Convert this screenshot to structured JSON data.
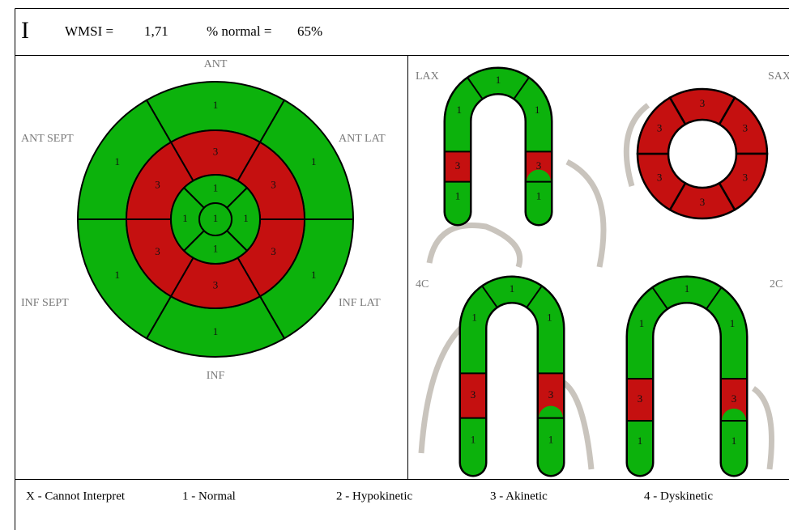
{
  "header": {
    "logo": "I",
    "wmsi_label": "WMSI =",
    "wmsi_value": "1,71",
    "normal_label": "% normal =",
    "normal_value": "65%"
  },
  "score_colors": {
    "1": "#0cb20c",
    "3": "#c51010"
  },
  "bullseye": {
    "labels": {
      "ant": "ANT",
      "ant_sept": "ANT SEPT",
      "ant_lat": "ANT LAT",
      "inf_sept": "INF SEPT",
      "inf_lat": "INF LAT",
      "inf": "INF"
    },
    "basal": [
      1,
      1,
      1,
      1,
      1,
      1
    ],
    "mid": [
      3,
      3,
      3,
      3,
      3,
      3
    ],
    "apical": [
      1,
      1,
      1,
      1
    ],
    "apex": 1
  },
  "views": [
    {
      "label": "LAX",
      "scores": [
        1,
        3,
        1,
        1,
        1,
        3,
        1
      ]
    },
    {
      "label": "4C",
      "scores": [
        1,
        3,
        1,
        1,
        1,
        3,
        1
      ]
    },
    {
      "label": "2C",
      "scores": [
        1,
        3,
        1,
        1,
        1,
        3,
        1
      ]
    }
  ],
  "sax": {
    "label": "SAX",
    "scores": [
      3,
      3,
      3,
      3,
      3,
      3
    ]
  },
  "legend": [
    "X - Cannot Interpret",
    "1 - Normal",
    "2 - Hypokinetic",
    "3 - Akinetic",
    "4 - Dyskinetic"
  ]
}
